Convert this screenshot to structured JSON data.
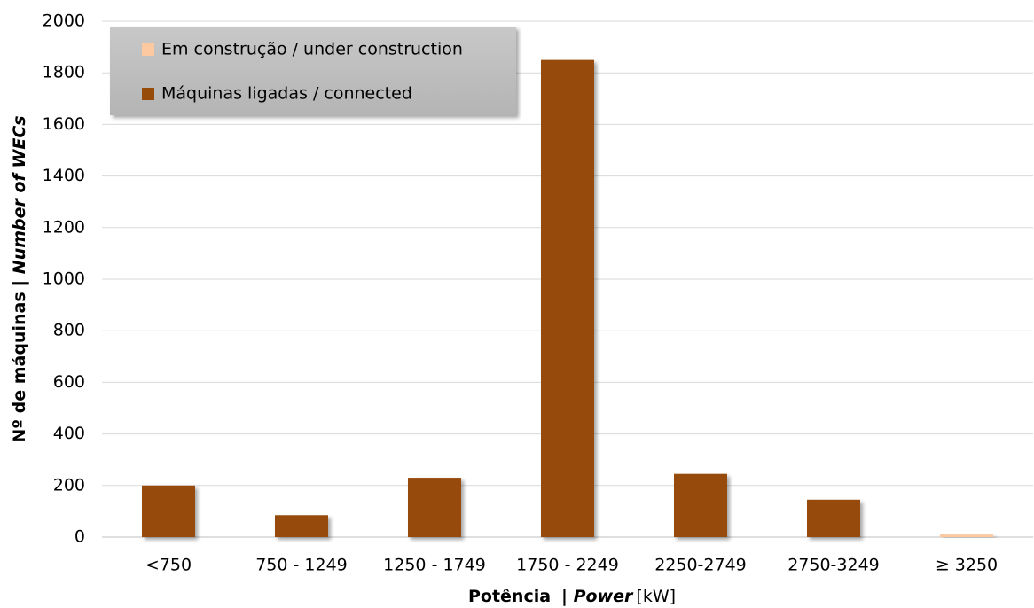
{
  "chart_data": {
    "type": "stacked_bar",
    "categories": [
      "<750",
      "750 - 1249",
      "1250 - 1749",
      "1750 - 2249",
      "2250-2749",
      "2750-3249",
      "≥ 3250"
    ],
    "series": [
      {
        "name": "Máquinas ligadas / connected",
        "color": "#964b09",
        "values": [
          200,
          85,
          230,
          1850,
          245,
          145,
          0
        ]
      },
      {
        "name": "Em construção / under construction",
        "color": "#fcc9a0",
        "values": [
          0,
          0,
          0,
          0,
          0,
          0,
          10
        ]
      }
    ],
    "legend_order": [
      1,
      0
    ],
    "ylim": [
      0,
      2000
    ],
    "yticks": [
      0,
      200,
      400,
      600,
      800,
      1000,
      1200,
      1400,
      1600,
      1800,
      2000
    ],
    "grid": true,
    "xlabel": {
      "main": "Potência",
      "sep": "| ",
      "italic": "Power",
      "unit": "[kW]"
    },
    "ylabel": {
      "main": "Nº de máquinas | ",
      "italic": "Number of WECs"
    },
    "legend": "upper left"
  }
}
